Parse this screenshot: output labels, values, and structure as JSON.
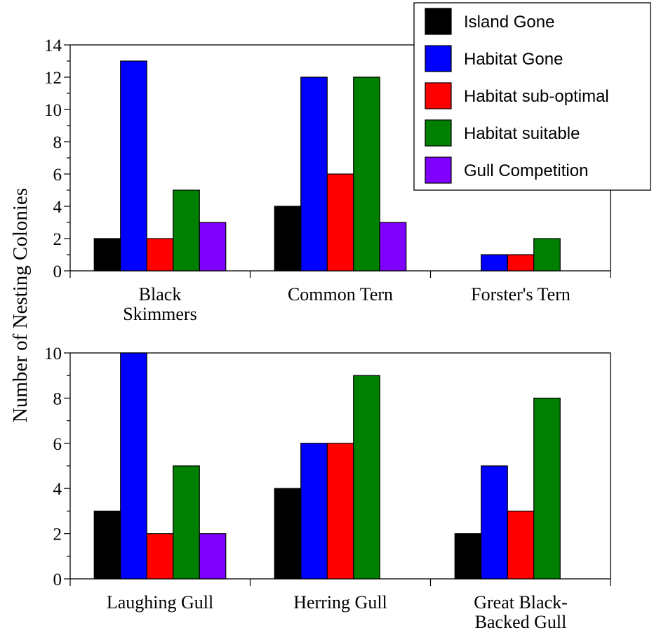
{
  "ylabel": "Number of Nesting Colonies",
  "legend": [
    {
      "name": "Island Gone",
      "color": "#000000"
    },
    {
      "name": "Habitat Gone",
      "color": "#0000ff"
    },
    {
      "name": "Habitat sub-optimal",
      "color": "#ff0000"
    },
    {
      "name": "Habitat suitable",
      "color": "#008000"
    },
    {
      "name": "Gull Competition",
      "color": "#8000ff"
    }
  ],
  "chart_data": [
    {
      "type": "bar",
      "categories": [
        [
          "Black",
          "Skimmers"
        ],
        [
          "Common Tern"
        ],
        [
          "Forster's Tern"
        ]
      ],
      "ylim": [
        0,
        14
      ],
      "yticks": [
        0,
        2,
        4,
        6,
        8,
        10,
        12,
        14
      ],
      "series": [
        {
          "name": "Island Gone",
          "values": [
            2,
            4,
            0
          ]
        },
        {
          "name": "Habitat Gone",
          "values": [
            13,
            12,
            1
          ]
        },
        {
          "name": "Habitat sub-optimal",
          "values": [
            2,
            6,
            1
          ]
        },
        {
          "name": "Habitat suitable",
          "values": [
            5,
            12,
            2
          ]
        },
        {
          "name": "Gull Competition",
          "values": [
            3,
            3,
            0
          ]
        }
      ]
    },
    {
      "type": "bar",
      "categories": [
        [
          "Laughing Gull"
        ],
        [
          "Herring Gull"
        ],
        [
          "Great Black-",
          "Backed Gull"
        ]
      ],
      "ylim": [
        0,
        10
      ],
      "yticks": [
        0,
        2,
        4,
        6,
        8,
        10
      ],
      "series": [
        {
          "name": "Island Gone",
          "values": [
            3,
            4,
            2
          ]
        },
        {
          "name": "Habitat Gone",
          "values": [
            10,
            6,
            5
          ]
        },
        {
          "name": "Habitat sub-optimal",
          "values": [
            2,
            6,
            3
          ]
        },
        {
          "name": "Habitat suitable",
          "values": [
            5,
            9,
            8
          ]
        },
        {
          "name": "Gull Competition",
          "values": [
            2,
            0,
            0
          ]
        }
      ]
    }
  ]
}
